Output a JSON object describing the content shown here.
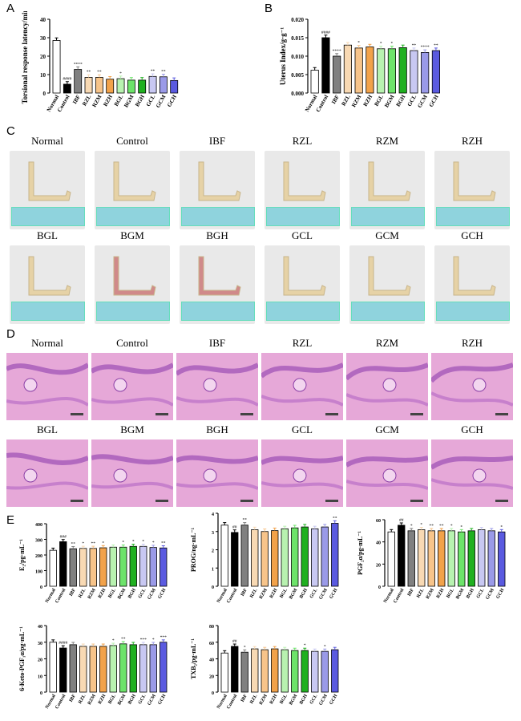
{
  "panels": {
    "A": {
      "letter": "A",
      "ylabel": "Torsional response latency/min",
      "chart_data": {
        "type": "bar",
        "categories": [
          "Normal",
          "Control",
          "IBF",
          "RZL",
          "RZM",
          "RZH",
          "BGL",
          "BGM",
          "BGH",
          "GCL",
          "GCM",
          "GCH"
        ],
        "values": [
          28.5,
          4.8,
          12.8,
          8.5,
          8.5,
          7.5,
          7.8,
          7.0,
          7.0,
          9.0,
          8.8,
          6.8
        ],
        "ylim": [
          0,
          40
        ],
        "yticks": [
          "0",
          "10",
          "20",
          "30",
          "40"
        ],
        "annotations": [
          "",
          "####",
          "****",
          "**",
          "**",
          "",
          "*",
          "",
          "",
          "**",
          "**",
          ""
        ]
      }
    },
    "B": {
      "letter": "B",
      "ylabel": "Uterus Index/g·g⁻¹",
      "chart_data": {
        "type": "bar",
        "categories": [
          "Normal",
          "Control",
          "IBF",
          "RZL",
          "RZM",
          "RZH",
          "BGL",
          "BGM",
          "BGH",
          "GCL",
          "GCM",
          "GCH"
        ],
        "values": [
          0.0062,
          0.015,
          0.01,
          0.013,
          0.0122,
          0.0125,
          0.012,
          0.012,
          0.0123,
          0.0115,
          0.011,
          0.0115
        ],
        "ylim": [
          0,
          0.02
        ],
        "yticks": [
          "0.000",
          "0.005",
          "0.010",
          "0.015",
          "0.020"
        ],
        "annotations": [
          "",
          "####",
          "****",
          "",
          "*",
          "",
          "*",
          "*",
          "",
          "**",
          "****",
          "**"
        ]
      }
    },
    "C": {
      "letter": "C",
      "row1": [
        "Normal",
        "Control",
        "IBF",
        "RZL",
        "RZM",
        "RZH"
      ],
      "row2": [
        "BGL",
        "BGM",
        "BGH",
        "GCL",
        "GCM",
        "GCH"
      ]
    },
    "D": {
      "letter": "D",
      "row1": [
        "Normal",
        "Control",
        "IBF",
        "RZL",
        "RZM",
        "RZH"
      ],
      "row2": [
        "BGL",
        "BGM",
        "BGH",
        "GCL",
        "GCM",
        "GCH"
      ]
    },
    "E": {
      "letter": "E",
      "charts": [
        {
          "ylabel": "E₂/pg·mL⁻¹",
          "chart_data": {
            "type": "bar",
            "categories": [
              "Normal",
              "Control",
              "IBF",
              "RZL",
              "RZM",
              "RZH",
              "BGL",
              "BGM",
              "BGH",
              "GCL",
              "GCM",
              "GCH"
            ],
            "values": [
              230,
              285,
              240,
              242,
              242,
              246,
              250,
              250,
              255,
              255,
              248,
              245
            ],
            "ylim": [
              0,
              400
            ],
            "yticks": [
              "0",
              "100",
              "200",
              "300",
              "400"
            ],
            "annotations": [
              "",
              "###",
              "**",
              "*",
              "**",
              "*",
              "",
              "*",
              "*",
              "*",
              "*",
              "**"
            ]
          }
        },
        {
          "ylabel": "PROG/ng·mL⁻¹",
          "chart_data": {
            "type": "bar",
            "categories": [
              "Normal",
              "Control",
              "IBF",
              "RZL",
              "RZM",
              "RZH",
              "BGL",
              "BGM",
              "BGH",
              "GCL",
              "GCM",
              "GCH"
            ],
            "values": [
              3.35,
              2.95,
              3.35,
              3.1,
              3.0,
              3.05,
              3.15,
              3.2,
              3.25,
              3.15,
              3.25,
              3.45
            ],
            "ylim": [
              0,
              4
            ],
            "yticks": [
              "0",
              "1",
              "2",
              "3",
              "4"
            ],
            "annotations": [
              "",
              "##",
              "**",
              "",
              "",
              "",
              "",
              "",
              "",
              "",
              "",
              "**"
            ]
          }
        },
        {
          "ylabel": "PGF₂α/pg·mL⁻¹",
          "chart_data": {
            "type": "bar",
            "categories": [
              "Normal",
              "Control",
              "IBF",
              "RZL",
              "RZM",
              "RZH",
              "BGL",
              "BGM",
              "BGH",
              "GCL",
              "GCM",
              "GCH"
            ],
            "values": [
              49,
              55,
              50,
              51,
              50,
              50,
              50,
              49,
              50,
              51,
              50,
              49
            ],
            "ylim": [
              0,
              60
            ],
            "yticks": [
              "0",
              "20",
              "40",
              "60"
            ],
            "annotations": [
              "",
              "##",
              "*",
              "*",
              "**",
              "**",
              "*",
              "*",
              "",
              "",
              "",
              "*"
            ]
          }
        },
        {
          "ylabel": "6-Keto-PGF₁α/pg·mL⁻¹",
          "chart_data": {
            "type": "bar",
            "categories": [
              "Normal",
              "Control",
              "IBF",
              "RZL",
              "RZM",
              "RZH",
              "BGL",
              "BGM",
              "BGH",
              "GCL",
              "GCM",
              "GCH"
            ],
            "values": [
              30,
              26.5,
              28.5,
              27.5,
              27.5,
              27.5,
              28,
              29,
              28.5,
              28.5,
              28.5,
              30
            ],
            "ylim": [
              0,
              40
            ],
            "yticks": [
              "0",
              "10",
              "20",
              "30",
              "40"
            ],
            "annotations": [
              "",
              "####",
              "",
              "",
              "",
              "",
              "*",
              "**",
              "",
              "***",
              "*",
              "***"
            ]
          }
        },
        {
          "ylabel": "TXB₂/pg·mL⁻¹",
          "chart_data": {
            "type": "bar",
            "categories": [
              "Normal",
              "Control",
              "IBF",
              "RZL",
              "RZM",
              "RZH",
              "BGL",
              "BGM",
              "BGH",
              "GCL",
              "GCM",
              "GCH"
            ],
            "values": [
              47,
              55,
              48,
              52,
              51,
              52,
              51,
              50,
              50,
              49,
              49,
              51
            ],
            "ylim": [
              0,
              80
            ],
            "yticks": [
              "0",
              "20",
              "40",
              "60",
              "80"
            ],
            "annotations": [
              "",
              "##",
              "*",
              "",
              "",
              "",
              "",
              "",
              "*",
              "",
              "*",
              ""
            ]
          }
        }
      ]
    }
  },
  "colors": [
    "#ffffff",
    "#000000",
    "#808080",
    "#f8d9b3",
    "#f7c48a",
    "#f2a24a",
    "#b8f2b0",
    "#6de36a",
    "#20b020",
    "#c8c8f2",
    "#9a9ae8",
    "#5a5ae0"
  ]
}
